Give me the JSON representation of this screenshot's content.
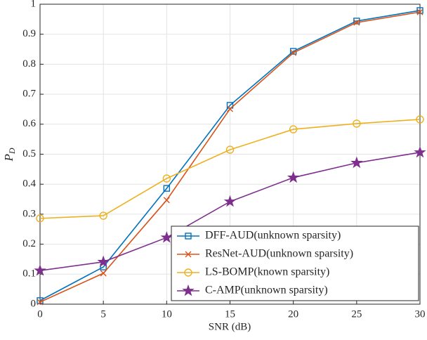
{
  "chart_data": {
    "type": "line",
    "xlabel": "SNR (dB)",
    "ylabel": {
      "text": "P",
      "subscript": "D"
    },
    "x": [
      0,
      5,
      10,
      15,
      20,
      25,
      30
    ],
    "series": [
      {
        "name": "DFF-AUD(unknown sparsity)",
        "color": "#0072BD",
        "marker": "square",
        "values": [
          0.012,
          0.124,
          0.386,
          0.663,
          0.843,
          0.944,
          0.979
        ]
      },
      {
        "name": "ResNet-AUD(unknown sparsity)",
        "color": "#D95319",
        "marker": "x",
        "values": [
          0.007,
          0.103,
          0.347,
          0.651,
          0.838,
          0.939,
          0.974
        ]
      },
      {
        "name": "LS-BOMP(known sparsity)",
        "color": "#EDB120",
        "marker": "circle",
        "values": [
          0.286,
          0.295,
          0.419,
          0.515,
          0.583,
          0.602,
          0.616
        ]
      },
      {
        "name": "C-AMP(unknown sparsity)",
        "color": "#7E2F8E",
        "marker": "star",
        "values": [
          0.112,
          0.141,
          0.222,
          0.342,
          0.422,
          0.471,
          0.506
        ]
      }
    ],
    "xlim": [
      0,
      30
    ],
    "xticks": [
      0,
      5,
      10,
      15,
      20,
      25,
      30
    ],
    "ylim": [
      0,
      1
    ],
    "yticks": [
      0,
      0.1,
      0.2,
      0.3,
      0.4,
      0.5,
      0.6,
      0.7,
      0.8,
      0.9,
      1
    ],
    "grid": true,
    "legend": "lower-right"
  }
}
